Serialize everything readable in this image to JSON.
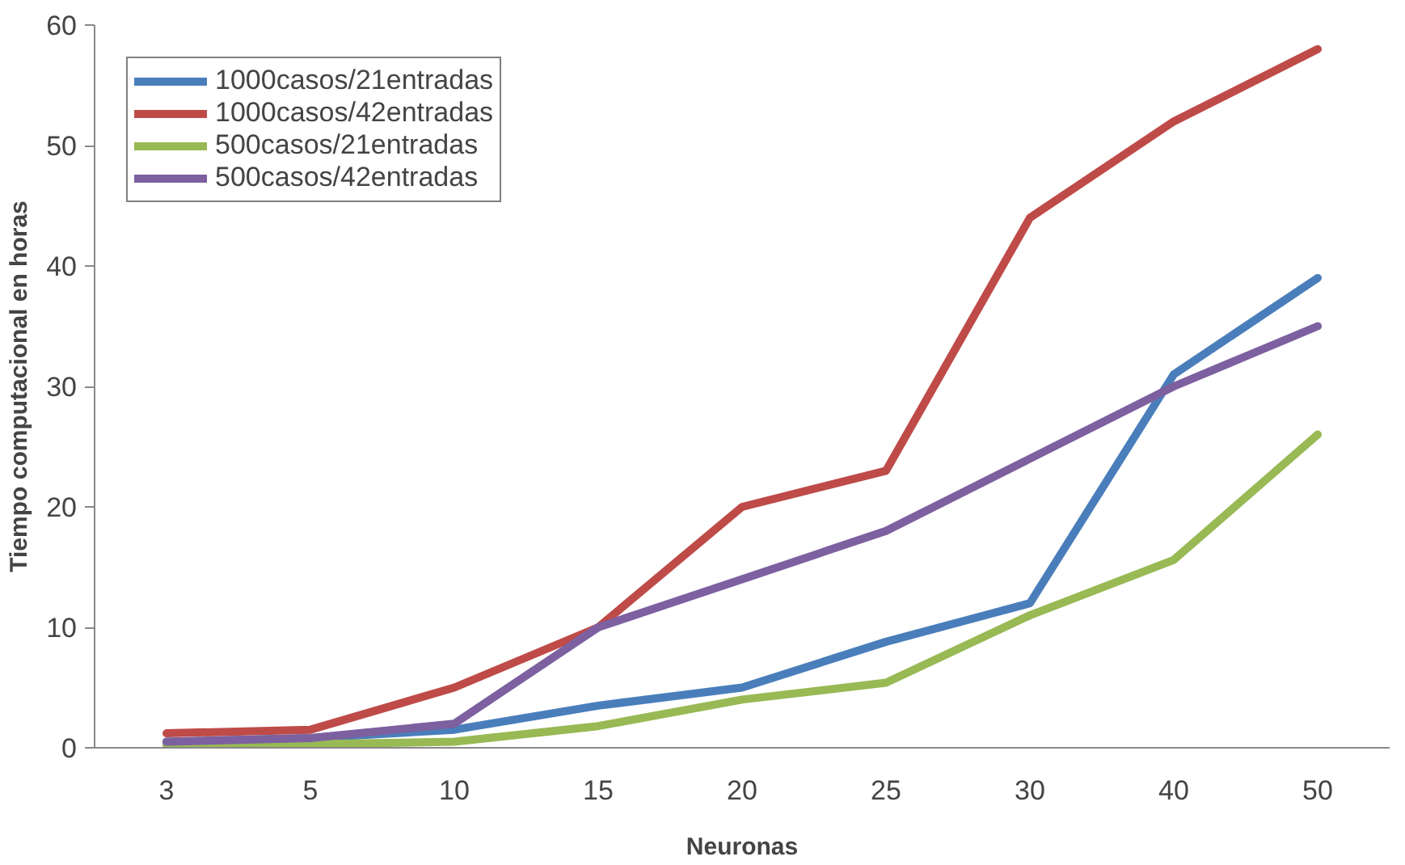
{
  "chart_data": {
    "type": "line",
    "xlabel": "Neuronas",
    "ylabel": "Tiempo computacional en horas",
    "categories": [
      "3",
      "5",
      "10",
      "15",
      "20",
      "25",
      "30",
      "40",
      "50"
    ],
    "series": [
      {
        "name": "1000casos/21entradas",
        "color": "#4a7ebb",
        "values": [
          0.5,
          0.8,
          1.5,
          3.5,
          5,
          8.8,
          12,
          31,
          39
        ]
      },
      {
        "name": "1000casos/42entradas",
        "color": "#be4b48",
        "values": [
          1.2,
          1.5,
          5,
          10,
          20,
          23,
          44,
          52,
          58
        ]
      },
      {
        "name": "500casos/21entradas",
        "color": "#98b954",
        "values": [
          0.2,
          0.3,
          0.5,
          1.8,
          4,
          5.4,
          11,
          15.6,
          26
        ]
      },
      {
        "name": "500casos/42entradas",
        "color": "#7d60a0",
        "values": [
          0.5,
          0.8,
          2,
          10,
          14,
          18,
          24,
          30,
          35
        ]
      }
    ],
    "ylim": [
      0,
      60
    ],
    "yticks": [
      0,
      10,
      20,
      30,
      40,
      50,
      60
    ],
    "grid": false,
    "legend": "top left"
  }
}
